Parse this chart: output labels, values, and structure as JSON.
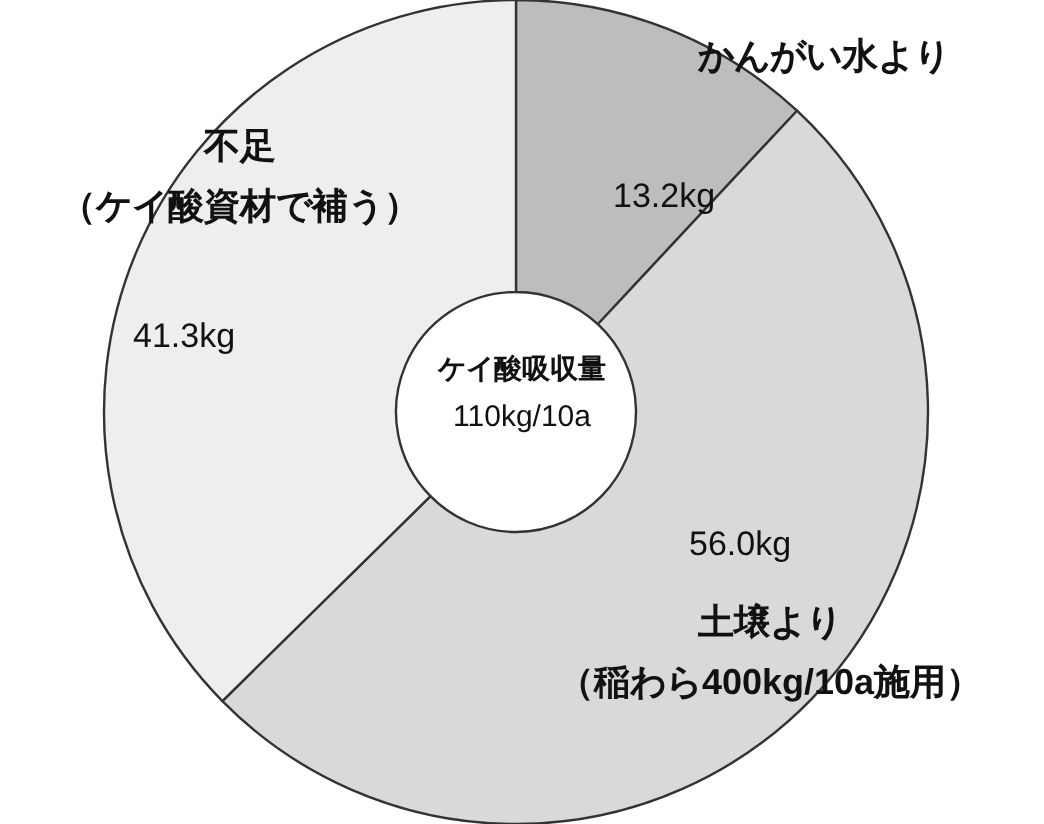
{
  "chart_data": {
    "type": "donut",
    "title": "ケイ酸吸収量",
    "subtitle": "110kg/10a",
    "categories": [
      "かんがい水より",
      "土壌より（稲わら400kg/10a施用）",
      "不足（ケイ酸資材で補う）"
    ],
    "values": [
      13.2,
      56.0,
      41.3
    ],
    "value_labels": [
      "13.2kg",
      "56.0kg",
      "41.3kg"
    ],
    "colors": [
      "#bdbdbd",
      "#d9d9d9",
      "#eeeeee"
    ],
    "legend": false
  }
}
